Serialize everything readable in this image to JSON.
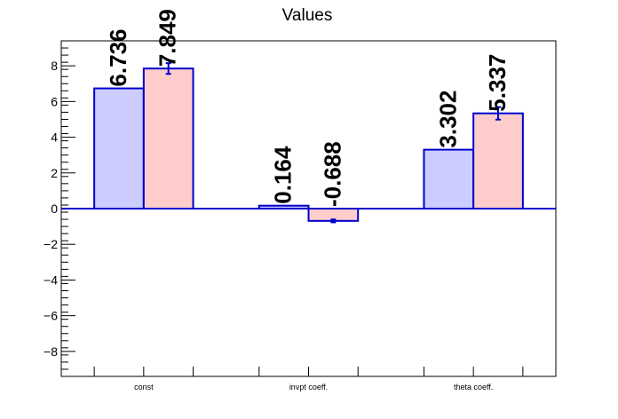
{
  "chart_data": {
    "type": "bar",
    "title": "Values",
    "categories": [
      "const",
      "invpt coeff.",
      "theta coeff."
    ],
    "series": [
      {
        "color": "#ccccff",
        "values": [
          6.736,
          0.164,
          3.302
        ],
        "errors": [
          0,
          0,
          0
        ]
      },
      {
        "color": "#ffcccc",
        "values": [
          7.849,
          -0.688,
          5.337
        ],
        "errors": [
          0.3,
          0.08,
          0.35
        ]
      }
    ],
    "value_labels": [
      [
        "6.736",
        "0.164",
        "3.302"
      ],
      [
        "7.849",
        "-0.688",
        "5.337"
      ]
    ],
    "ylim": [
      -9.4,
      9.4
    ],
    "yticks": [
      -8,
      -6,
      -4,
      -2,
      0,
      2,
      4,
      6,
      8
    ],
    "yticklabels": [
      "−8",
      "−6",
      "−4",
      "−2",
      "0",
      "2",
      "4",
      "6",
      "8"
    ],
    "bar_edge_color": "#0000cc",
    "grid": false,
    "legend": "none"
  }
}
